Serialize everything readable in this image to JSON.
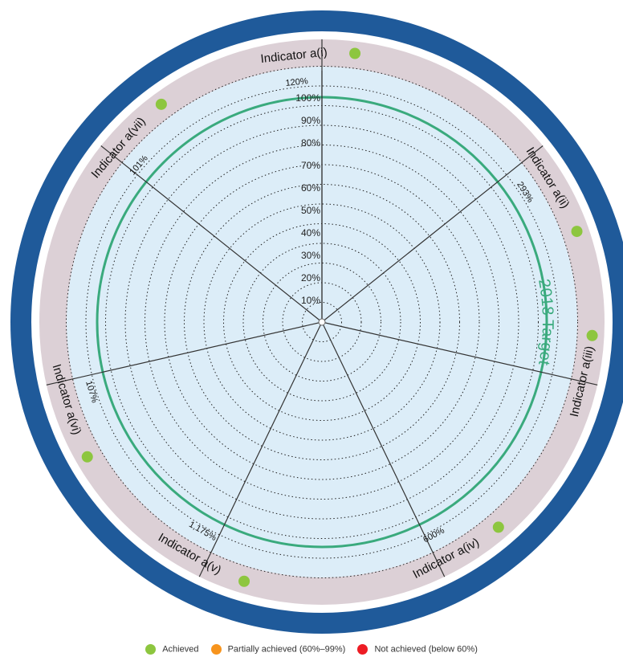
{
  "chart_data": {
    "type": "radial",
    "target_label": "2018 Target",
    "radial_ticks": [
      "10%",
      "20%",
      "30%",
      "40%",
      "50%",
      "60%",
      "70%",
      "80%",
      "90%",
      "100%"
    ],
    "indicators": [
      {
        "name": "Indicator a(i)",
        "value_label": "120%",
        "value": 120,
        "status": "achieved"
      },
      {
        "name": "Indicator a(ii)",
        "value_label": "293%",
        "value": 293,
        "status": "achieved"
      },
      {
        "name": "Indicator a(iii)",
        "value_label": "",
        "value": null,
        "status": "achieved"
      },
      {
        "name": "Indicator a(iv)",
        "value_label": "600%",
        "value": 600,
        "status": "achieved"
      },
      {
        "name": "Indicator a(v)",
        "value_label": "1,175%",
        "value": 1175,
        "status": "achieved"
      },
      {
        "name": "Indicator a(vi)",
        "value_label": "107%",
        "value": 107,
        "status": "achieved"
      },
      {
        "name": "Indicator a(vii)",
        "value_label": "101%",
        "value": 101,
        "status": "achieved"
      }
    ],
    "legend": [
      {
        "label": "Achieved",
        "color": "#8dc63f"
      },
      {
        "label": "Partially achieved (60%–99%)",
        "color": "#f7941d"
      },
      {
        "label": "Not achieved (below 60%)",
        "color": "#ed1c24"
      }
    ],
    "colors": {
      "outer_ring": "#1f5a9a",
      "band": "#dcd0d6",
      "inner_fill": "#dcedf8",
      "target_ring": "#3aaa7d",
      "achieved": "#8dc63f"
    }
  }
}
